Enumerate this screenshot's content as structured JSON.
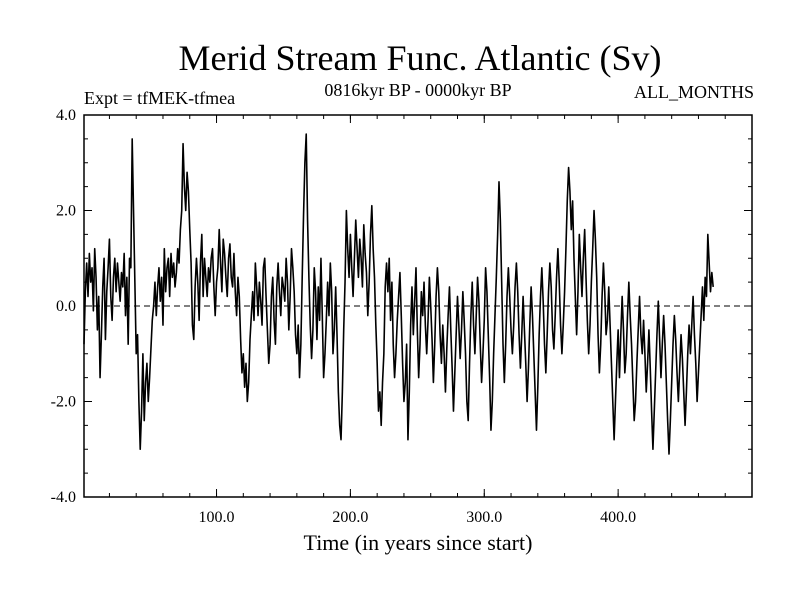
{
  "chart_data": {
    "type": "line",
    "title": "Merid Stream Func. Atlantic (Sv)",
    "subtitle_left": "Expt = tfMEK-tfmea",
    "subtitle_center": "0816kyr BP - 0000kyr BP",
    "subtitle_right": "ALL_MONTHS",
    "xlabel": "Time (in years since start)",
    "ylabel": "",
    "xlim": [
      1,
      500
    ],
    "ylim": [
      -4,
      4
    ],
    "xticks": [
      100,
      200,
      300,
      400
    ],
    "xtick_labels": [
      "100.0",
      "200.0",
      "300.0",
      "400.0"
    ],
    "yticks": [
      -4,
      -2,
      0,
      2,
      4
    ],
    "ytick_labels": [
      "-4.0",
      "-2.0",
      "0.0",
      "2.0",
      "4.0"
    ],
    "zero_line": true,
    "series": [
      {
        "name": "Merid Stream Func. Atlantic",
        "x_start": 1,
        "x_step": 1,
        "color": "#000000",
        "values": [
          -0.8,
          0.3,
          0.9,
          0.2,
          1.1,
          0.5,
          0.8,
          -0.1,
          1.2,
          0.6,
          -0.5,
          0.2,
          -1.5,
          -0.6,
          0.4,
          1.0,
          -0.7,
          0.3,
          0.8,
          1.4,
          0.2,
          -0.3,
          0.6,
          1.0,
          0.3,
          0.9,
          0.5,
          0.1,
          0.7,
          0.4,
          1.1,
          -0.2,
          0.6,
          -0.8,
          1.0,
          0.8,
          3.5,
          2.0,
          0.5,
          -1.0,
          -0.6,
          -2.0,
          -3.0,
          -2.2,
          -1.0,
          -2.4,
          -1.6,
          -1.2,
          -2.0,
          -1.5,
          -0.9,
          -0.3,
          0.0,
          0.5,
          -0.2,
          0.4,
          0.8,
          0.1,
          0.6,
          -0.4,
          1.2,
          0.3,
          0.8,
          1.0,
          0.2,
          1.1,
          0.6,
          0.9,
          0.4,
          0.7,
          1.2,
          0.9,
          1.6,
          2.0,
          3.4,
          2.5,
          2.0,
          2.8,
          2.4,
          1.6,
          0.9,
          -0.4,
          -0.7,
          0.4,
          1.0,
          0.5,
          -0.3,
          0.9,
          1.5,
          0.2,
          1.0,
          0.6,
          0.2,
          0.8,
          0.5,
          1.0,
          1.2,
          0.4,
          -0.2,
          0.5,
          0.8,
          1.6,
          0.9,
          0.3,
          1.4,
          1.1,
          0.6,
          0.2,
          1.0,
          1.3,
          0.6,
          0.4,
          1.1,
          0.3,
          -0.2,
          0.6,
          0.2,
          -0.7,
          -1.4,
          -1.0,
          -1.7,
          -1.2,
          -2.0,
          -1.6,
          -0.7,
          -0.2,
          0.3,
          -0.3,
          0.9,
          0.4,
          -0.2,
          0.5,
          0.1,
          -0.4,
          0.8,
          1.0,
          0.2,
          -0.5,
          -1.2,
          -0.8,
          0.2,
          0.6,
          -0.3,
          -0.8,
          0.4,
          0.9,
          0.3,
          -0.2,
          0.6,
          0.4,
          0.1,
          1.0,
          0.5,
          -0.5,
          0.2,
          1.2,
          0.8,
          0.3,
          -0.6,
          -1.0,
          -0.4,
          -1.5,
          -0.8,
          0.6,
          1.9,
          3.0,
          3.6,
          1.8,
          0.6,
          -0.4,
          -1.1,
          -0.5,
          0.8,
          0.3,
          -0.7,
          0.4,
          -0.3,
          1.0,
          -0.2,
          -1.5,
          -1.0,
          -0.3,
          0.5,
          -0.2,
          0.9,
          0.3,
          -1.0,
          -0.5,
          0.4,
          -0.6,
          -1.8,
          -2.5,
          -2.8,
          -1.8,
          -0.5,
          0.5,
          2.0,
          1.2,
          0.6,
          1.5,
          0.8,
          0.2,
          1.0,
          1.8,
          1.2,
          0.6,
          1.4,
          1.0,
          0.4,
          1.7,
          1.1,
          0.7,
          -0.2,
          0.5,
          1.5,
          2.1,
          1.2,
          0.6,
          -0.4,
          -1.2,
          -2.2,
          -1.8,
          -2.5,
          -1.6,
          -1.0,
          0.4,
          0.9,
          0.3,
          1.0,
          -0.3,
          0.5,
          -0.8,
          -1.5,
          -1.0,
          -0.3,
          0.2,
          0.7,
          -0.2,
          -1.2,
          -2.0,
          -1.6,
          -0.8,
          -2.8,
          -1.8,
          -0.4,
          0.4,
          -0.6,
          0.1,
          0.8,
          -0.5,
          -1.5,
          -0.8,
          0.3,
          -0.2,
          0.5,
          -0.4,
          -1.0,
          -0.3,
          0.6,
          0.0,
          -0.7,
          -1.6,
          -0.8,
          0.2,
          0.8,
          0.3,
          -0.6,
          -1.2,
          -0.4,
          -1.0,
          -1.8,
          -0.9,
          -0.2,
          0.4,
          -0.5,
          -1.3,
          -2.2,
          -1.4,
          -0.6,
          0.2,
          -0.4,
          -1.1,
          -0.5,
          0.3,
          -0.3,
          -1.0,
          -2.0,
          -2.4,
          -1.2,
          -0.2,
          0.5,
          -0.4,
          -1.0,
          -0.2,
          0.6,
          0.1,
          -0.8,
          -1.6,
          -1.0,
          -0.3,
          0.8,
          0.3,
          -0.6,
          -1.5,
          -2.6,
          -2.0,
          -1.0,
          -0.2,
          0.6,
          1.5,
          2.6,
          1.8,
          0.5,
          -0.8,
          -1.6,
          -0.8,
          0.2,
          0.8,
          0.2,
          -0.5,
          -1.0,
          -0.4,
          0.4,
          0.9,
          0.3,
          -0.6,
          -1.3,
          -0.6,
          0.2,
          -0.5,
          -1.2,
          -2.0,
          -1.3,
          -0.4,
          0.4,
          -0.2,
          -1.0,
          -1.8,
          -2.6,
          -1.7,
          -0.6,
          0.2,
          0.8,
          0.1,
          -0.8,
          -1.4,
          -0.6,
          0.3,
          0.9,
          0.4,
          -0.5,
          -0.9,
          -0.2,
          0.6,
          1.2,
          0.5,
          -0.4,
          -1.0,
          -0.4,
          0.3,
          1.2,
          2.2,
          2.9,
          2.4,
          1.6,
          2.2,
          1.0,
          0.2,
          -0.6,
          0.3,
          1.5,
          0.8,
          0.2,
          1.0,
          1.6,
          0.6,
          -0.3,
          -1.0,
          -0.4,
          0.5,
          1.2,
          2.0,
          1.4,
          0.6,
          -0.6,
          -1.4,
          -0.8,
          0.2,
          0.9,
          0.3,
          -0.6,
          -0.3,
          0.4,
          -0.4,
          -1.2,
          -2.0,
          -2.8,
          -2.0,
          -1.2,
          -0.5,
          -1.5,
          -0.6,
          0.2,
          -0.5,
          -1.4,
          -1.0,
          -0.2,
          0.5,
          -0.2,
          -0.8,
          -1.6,
          -2.4,
          -2.0,
          -1.2,
          -0.5,
          0.2,
          -0.6,
          -1.0,
          -0.3,
          -1.0,
          -1.8,
          -1.2,
          -0.5,
          -1.3,
          -2.2,
          -3.0,
          -2.2,
          -1.4,
          -0.6,
          0.1,
          -0.7,
          -1.5,
          -0.8,
          -0.2,
          -0.8,
          -1.6,
          -2.4,
          -3.1,
          -2.4,
          -1.6,
          -0.8,
          -0.2,
          -0.7,
          -1.4,
          -2.0,
          -1.3,
          -0.6,
          -1.1,
          -1.8,
          -2.5,
          -1.8,
          -1.0,
          -0.4,
          -1.0,
          -0.4,
          0.2,
          -0.6,
          -1.2,
          -2.0,
          -1.4,
          -0.8,
          -0.2,
          0.4,
          -0.3,
          0.6,
          0.2,
          1.5,
          0.9,
          0.3,
          0.7,
          0.4
        ]
      }
    ]
  }
}
